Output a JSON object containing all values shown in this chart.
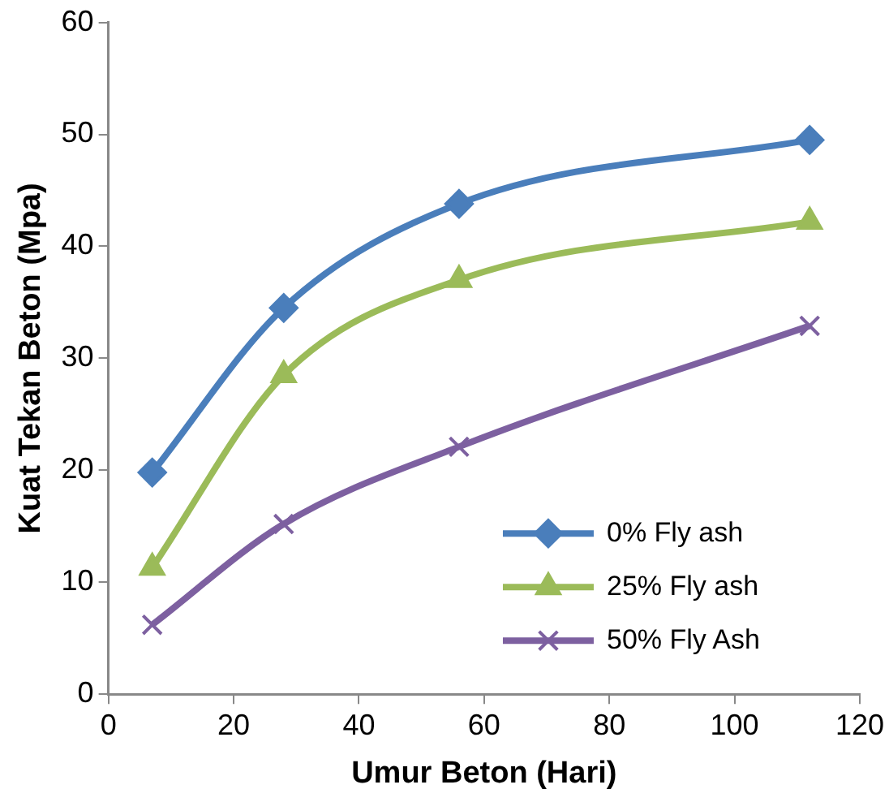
{
  "chart_data": {
    "type": "line",
    "xlabel": "Umur Beton (Hari)",
    "ylabel": "Kuat Tekan Beton (Mpa)",
    "x": [
      7,
      28,
      56,
      112
    ],
    "series": [
      {
        "name": "0% Fly ash",
        "color": "#4a7ebb",
        "marker": "diamond",
        "values": [
          19.8,
          34.5,
          43.8,
          49.5
        ]
      },
      {
        "name": "25% Fly ash",
        "color": "#9bbb59",
        "marker": "triangle",
        "values": [
          11.3,
          28.5,
          37.0,
          42.2
        ]
      },
      {
        "name": "50% Fly Ash",
        "color": "#7d60a0",
        "marker": "cross",
        "values": [
          6.2,
          15.2,
          22.1,
          32.9
        ]
      }
    ],
    "xlim": [
      0,
      120
    ],
    "xticks": [
      0,
      20,
      40,
      60,
      80,
      100,
      120
    ],
    "ylim": [
      0,
      60
    ],
    "yticks": [
      0,
      10,
      20,
      30,
      40,
      50,
      60
    ],
    "grid": false,
    "legend": "bottom right"
  }
}
